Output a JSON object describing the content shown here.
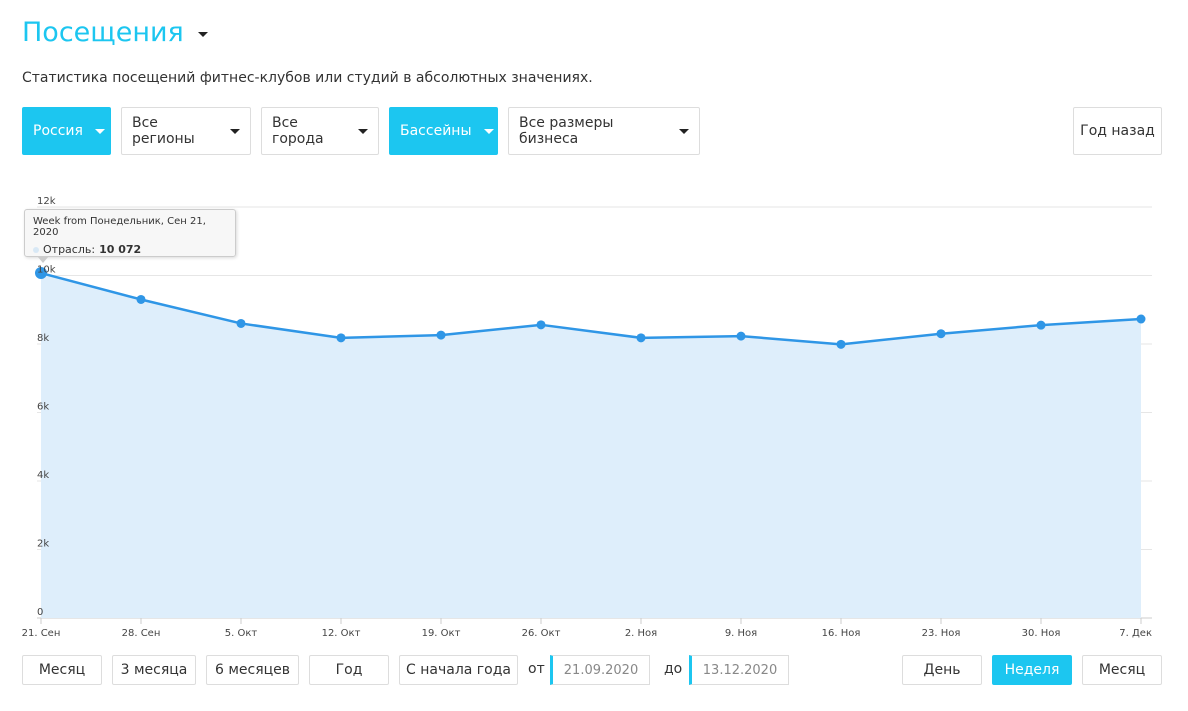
{
  "header": {
    "title": "Посещения",
    "description": "Статистика посещений фитнес-клубов или студий в абсолютных значениях."
  },
  "filters": {
    "country": "Россия",
    "region": "Все регионы",
    "city": "Все города",
    "type": "Бассейны",
    "size": "Все размеры бизнеса",
    "period_back": "Год назад"
  },
  "tooltip": {
    "title": "Week from Понедельник, Сен 21, 2020",
    "series_label": "Отрасль:",
    "value": "10 072"
  },
  "range_buttons": [
    "Месяц",
    "3 месяца",
    "6 месяцев",
    "Год",
    "С начала года"
  ],
  "date_range": {
    "from_label": "от",
    "from": "21.09.2020",
    "to_label": "до",
    "to": "13.12.2020"
  },
  "granularity": {
    "day": "День",
    "week": "Неделя",
    "month": "Месяц",
    "selected": "week"
  },
  "colors": {
    "accent": "#1cc6f0",
    "line": "#2f96e6",
    "area": "#deeefb"
  },
  "chart_data": {
    "type": "area",
    "categories": [
      "21. Сен",
      "28. Сен",
      "5. Окт",
      "12. Окт",
      "19. Окт",
      "26. Окт",
      "2. Ноя",
      "9. Ноя",
      "16. Ноя",
      "23. Ноя",
      "30. Ноя",
      "7. Дек"
    ],
    "series": [
      {
        "name": "Отрасль",
        "values": [
          10072,
          9300,
          8600,
          8180,
          8260,
          8560,
          8180,
          8230,
          7990,
          8300,
          8550,
          8730
        ]
      }
    ],
    "yticks": [
      "0",
      "2k",
      "4k",
      "6k",
      "8k",
      "10k",
      "12k"
    ],
    "ylim": [
      0,
      12000
    ],
    "grid": true
  }
}
